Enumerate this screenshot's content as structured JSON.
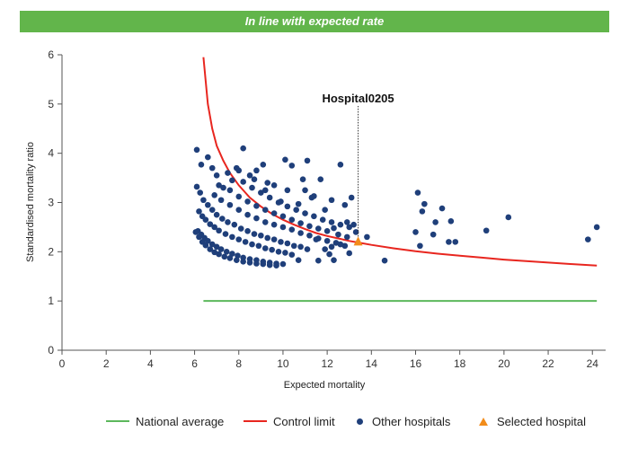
{
  "banner": {
    "title": "In line with expected rate",
    "color": "#62b54b"
  },
  "chart_data": {
    "type": "scatter",
    "title": "",
    "xlabel": "Expected mortality",
    "ylabel": "Standardised mortality ratio",
    "xlim": [
      0,
      24.6
    ],
    "ylim": [
      0,
      6
    ],
    "xticks": [
      "0",
      "2",
      "4",
      "6",
      "8",
      "10",
      "12",
      "14",
      "16",
      "18",
      "20",
      "22",
      "24"
    ],
    "yticks": [
      "0",
      "1",
      "2",
      "3",
      "4",
      "5",
      "6"
    ],
    "grid": false,
    "legend_position": "bottom",
    "legend": [
      {
        "label": "National average",
        "kind": "line",
        "color": "#5cb85c"
      },
      {
        "label": "Control limit",
        "kind": "line",
        "color": "#e8261f"
      },
      {
        "label": "Other hospitals",
        "kind": "dot",
        "color": "#1f3f7a"
      },
      {
        "label": "Selected hospital",
        "kind": "triangle",
        "color": "#f28c1a"
      }
    ],
    "national_average": {
      "y": 1,
      "x_range": [
        6.4,
        24.2
      ]
    },
    "control_limit": {
      "points": [
        [
          6.4,
          5.95
        ],
        [
          6.6,
          5.0
        ],
        [
          6.8,
          4.5
        ],
        [
          7.0,
          4.15
        ],
        [
          7.3,
          3.85
        ],
        [
          7.6,
          3.6
        ],
        [
          8.0,
          3.35
        ],
        [
          8.5,
          3.1
        ],
        [
          9.0,
          2.92
        ],
        [
          9.5,
          2.77
        ],
        [
          10.0,
          2.65
        ],
        [
          10.5,
          2.55
        ],
        [
          11.0,
          2.46
        ],
        [
          11.5,
          2.38
        ],
        [
          12.0,
          2.32
        ],
        [
          12.5,
          2.27
        ],
        [
          13.0,
          2.22
        ],
        [
          13.5,
          2.18
        ],
        [
          14.0,
          2.14
        ],
        [
          15.0,
          2.07
        ],
        [
          16.0,
          2.01
        ],
        [
          17.0,
          1.96
        ],
        [
          18.0,
          1.92
        ],
        [
          19.0,
          1.88
        ],
        [
          20.0,
          1.84
        ],
        [
          21.0,
          1.81
        ],
        [
          22.0,
          1.78
        ],
        [
          23.0,
          1.75
        ],
        [
          24.2,
          1.72
        ]
      ]
    },
    "other_hospitals": [
      [
        6.1,
        4.07
      ],
      [
        6.3,
        3.77
      ],
      [
        6.6,
        3.92
      ],
      [
        6.8,
        3.7
      ],
      [
        7.0,
        3.55
      ],
      [
        7.1,
        3.35
      ],
      [
        7.3,
        3.3
      ],
      [
        7.5,
        3.6
      ],
      [
        7.7,
        3.45
      ],
      [
        7.9,
        3.7
      ],
      [
        8.0,
        3.65
      ],
      [
        8.2,
        4.1
      ],
      [
        8.2,
        3.42
      ],
      [
        8.5,
        3.55
      ],
      [
        8.7,
        3.47
      ],
      [
        8.8,
        3.65
      ],
      [
        9.1,
        3.77
      ],
      [
        9.3,
        3.4
      ],
      [
        9.6,
        3.35
      ],
      [
        9.2,
        3.25
      ],
      [
        10.1,
        3.87
      ],
      [
        10.4,
        3.75
      ],
      [
        10.9,
        3.47
      ],
      [
        11.1,
        3.85
      ],
      [
        10.2,
        3.25
      ],
      [
        11.0,
        3.25
      ],
      [
        11.7,
        3.47
      ],
      [
        12.6,
        3.77
      ],
      [
        12.2,
        3.05
      ],
      [
        12.8,
        2.95
      ],
      [
        13.1,
        3.1
      ],
      [
        11.4,
        3.13
      ],
      [
        6.1,
        3.32
      ],
      [
        6.25,
        3.2
      ],
      [
        6.4,
        3.05
      ],
      [
        6.6,
        2.95
      ],
      [
        6.8,
        2.85
      ],
      [
        7.0,
        2.75
      ],
      [
        7.25,
        2.67
      ],
      [
        7.5,
        2.6
      ],
      [
        7.8,
        2.55
      ],
      [
        8.1,
        2.47
      ],
      [
        8.4,
        2.42
      ],
      [
        8.7,
        2.36
      ],
      [
        9.0,
        2.33
      ],
      [
        9.3,
        2.28
      ],
      [
        9.6,
        2.25
      ],
      [
        9.9,
        2.2
      ],
      [
        10.2,
        2.17
      ],
      [
        10.5,
        2.12
      ],
      [
        10.8,
        2.1
      ],
      [
        11.1,
        2.05
      ],
      [
        6.2,
        2.82
      ],
      [
        6.35,
        2.72
      ],
      [
        6.5,
        2.65
      ],
      [
        6.7,
        2.56
      ],
      [
        6.9,
        2.5
      ],
      [
        7.1,
        2.43
      ],
      [
        7.4,
        2.36
      ],
      [
        7.7,
        2.3
      ],
      [
        8.0,
        2.25
      ],
      [
        8.3,
        2.2
      ],
      [
        8.6,
        2.15
      ],
      [
        8.9,
        2.12
      ],
      [
        9.2,
        2.07
      ],
      [
        9.5,
        2.04
      ],
      [
        9.8,
        2.0
      ],
      [
        10.1,
        1.98
      ],
      [
        10.4,
        1.94
      ],
      [
        6.15,
        2.42
      ],
      [
        6.3,
        2.35
      ],
      [
        6.45,
        2.28
      ],
      [
        6.6,
        2.22
      ],
      [
        6.8,
        2.15
      ],
      [
        7.0,
        2.1
      ],
      [
        7.2,
        2.05
      ],
      [
        7.45,
        2.0
      ],
      [
        7.7,
        1.96
      ],
      [
        7.95,
        1.92
      ],
      [
        8.2,
        1.88
      ],
      [
        8.5,
        1.85
      ],
      [
        8.8,
        1.83
      ],
      [
        9.1,
        1.8
      ],
      [
        9.4,
        1.78
      ],
      [
        9.7,
        1.76
      ],
      [
        10.0,
        1.75
      ],
      [
        6.05,
        2.4
      ],
      [
        6.2,
        2.3
      ],
      [
        6.35,
        2.2
      ],
      [
        6.5,
        2.13
      ],
      [
        6.7,
        2.05
      ],
      [
        6.9,
        1.99
      ],
      [
        7.1,
        1.95
      ],
      [
        7.35,
        1.9
      ],
      [
        7.6,
        1.87
      ],
      [
        7.9,
        1.83
      ],
      [
        8.2,
        1.8
      ],
      [
        8.5,
        1.78
      ],
      [
        8.8,
        1.76
      ],
      [
        9.1,
        1.75
      ],
      [
        9.4,
        1.73
      ],
      [
        9.7,
        1.72
      ],
      [
        6.9,
        3.15
      ],
      [
        7.2,
        3.05
      ],
      [
        7.6,
        2.95
      ],
      [
        8.0,
        2.85
      ],
      [
        8.4,
        2.75
      ],
      [
        8.8,
        2.68
      ],
      [
        9.2,
        2.6
      ],
      [
        9.6,
        2.55
      ],
      [
        10.0,
        2.5
      ],
      [
        10.4,
        2.45
      ],
      [
        10.8,
        2.38
      ],
      [
        11.2,
        2.33
      ],
      [
        11.6,
        2.27
      ],
      [
        12.0,
        2.22
      ],
      [
        12.4,
        2.18
      ],
      [
        12.8,
        2.12
      ],
      [
        7.6,
        3.25
      ],
      [
        8.0,
        3.12
      ],
      [
        8.4,
        3.02
      ],
      [
        8.8,
        2.93
      ],
      [
        9.2,
        2.85
      ],
      [
        9.6,
        2.78
      ],
      [
        10.0,
        2.72
      ],
      [
        10.4,
        2.65
      ],
      [
        10.8,
        2.58
      ],
      [
        11.2,
        2.52
      ],
      [
        11.6,
        2.47
      ],
      [
        12.0,
        2.42
      ],
      [
        12.5,
        2.35
      ],
      [
        12.9,
        2.3
      ],
      [
        8.6,
        3.3
      ],
      [
        9.0,
        3.2
      ],
      [
        9.4,
        3.1
      ],
      [
        9.8,
        3.0
      ],
      [
        10.2,
        2.92
      ],
      [
        10.6,
        2.85
      ],
      [
        11.0,
        2.78
      ],
      [
        11.4,
        2.72
      ],
      [
        11.8,
        2.65
      ],
      [
        12.2,
        2.6
      ],
      [
        12.6,
        2.55
      ],
      [
        13.0,
        2.5
      ],
      [
        9.9,
        3.02
      ],
      [
        10.7,
        2.97
      ],
      [
        11.3,
        3.1
      ],
      [
        11.9,
        2.85
      ],
      [
        12.3,
        2.48
      ],
      [
        12.9,
        2.6
      ],
      [
        13.2,
        2.55
      ],
      [
        11.5,
        2.25
      ],
      [
        12.1,
        1.95
      ],
      [
        11.9,
        2.05
      ],
      [
        12.6,
        2.15
      ],
      [
        12.2,
        2.1
      ],
      [
        11.6,
        1.82
      ],
      [
        12.3,
        1.83
      ],
      [
        10.7,
        1.83
      ],
      [
        13.0,
        1.97
      ],
      [
        13.3,
        2.4
      ],
      [
        13.8,
        2.3
      ],
      [
        14.6,
        1.82
      ],
      [
        16.0,
        2.4
      ],
      [
        16.1,
        3.2
      ],
      [
        16.2,
        2.12
      ],
      [
        16.3,
        2.82
      ],
      [
        16.4,
        2.97
      ],
      [
        16.8,
        2.35
      ],
      [
        16.9,
        2.6
      ],
      [
        17.2,
        2.88
      ],
      [
        17.5,
        2.2
      ],
      [
        17.6,
        2.62
      ],
      [
        17.8,
        2.2
      ],
      [
        19.2,
        2.43
      ],
      [
        20.2,
        2.7
      ],
      [
        23.8,
        2.25
      ],
      [
        24.2,
        2.5
      ]
    ],
    "selected_hospital": {
      "label": "Hospital0205",
      "x": 13.4,
      "y": 2.2
    }
  }
}
